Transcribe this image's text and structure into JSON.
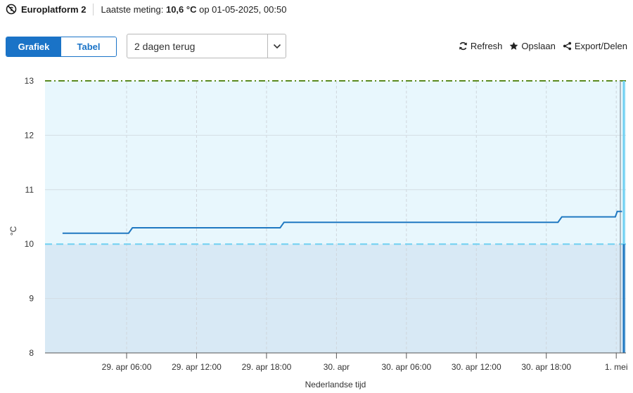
{
  "header": {
    "station": "Europlatform 2",
    "measurement_prefix": "Laatste meting: ",
    "measurement_value": "10,6 °C",
    "measurement_suffix": " op 01-05-2025, 00:50",
    "icon": "no-signal-icon"
  },
  "view_toggle": {
    "active": "Grafiek",
    "inactive": "Tabel"
  },
  "period_select": {
    "value": "2 dagen terug",
    "icon": "chevron-down-icon"
  },
  "actions": {
    "refresh": "Refresh",
    "save": "Opslaan",
    "export": "Export/Delen",
    "icons": [
      "refresh-icon",
      "star-icon",
      "share-icon"
    ]
  },
  "colors": {
    "accent": "#1a73c7",
    "line": "#1f78c1",
    "upper_band": "#e8f7fd",
    "lower_band": "#d8e9f5",
    "threshold": "#6fd0f2",
    "top_line": "#5a8a1f"
  },
  "chart_data": {
    "type": "line",
    "xlabel": "Nederlandse tijd",
    "ylabel": "°C",
    "ylim": [
      8,
      13
    ],
    "yticks": [
      "13",
      "12",
      "11",
      "10",
      "9",
      "8"
    ],
    "xlim": [
      "2025-04-28T23:00",
      "2025-05-01T00:50"
    ],
    "xticks": [
      {
        "t": "2025-04-29T06:00",
        "label": "29. apr 06:00"
      },
      {
        "t": "2025-04-29T12:00",
        "label": "29. apr 12:00"
      },
      {
        "t": "2025-04-29T18:00",
        "label": "29. apr 18:00"
      },
      {
        "t": "2025-04-30T00:00",
        "label": "30. apr"
      },
      {
        "t": "2025-04-30T06:00",
        "label": "30. apr 06:00"
      },
      {
        "t": "2025-04-30T12:00",
        "label": "30. apr 12:00"
      },
      {
        "t": "2025-04-30T18:00",
        "label": "30. apr 18:00"
      },
      {
        "t": "2025-05-01T00:00",
        "label": "1. mei"
      }
    ],
    "threshold": 10,
    "upper_limit": 13,
    "series": [
      {
        "points": [
          {
            "t": "2025-04-29T00:30",
            "y": 10.2
          },
          {
            "t": "2025-04-29T06:10",
            "y": 10.2
          },
          {
            "t": "2025-04-29T06:30",
            "y": 10.3
          },
          {
            "t": "2025-04-29T19:10",
            "y": 10.3
          },
          {
            "t": "2025-04-29T19:30",
            "y": 10.4
          },
          {
            "t": "2025-04-30T19:00",
            "y": 10.4
          },
          {
            "t": "2025-04-30T19:20",
            "y": 10.5
          },
          {
            "t": "2025-04-30T23:55",
            "y": 10.5
          },
          {
            "t": "2025-05-01T00:05",
            "y": 10.6
          },
          {
            "t": "2025-05-01T00:30",
            "y": 10.6
          }
        ]
      }
    ]
  }
}
